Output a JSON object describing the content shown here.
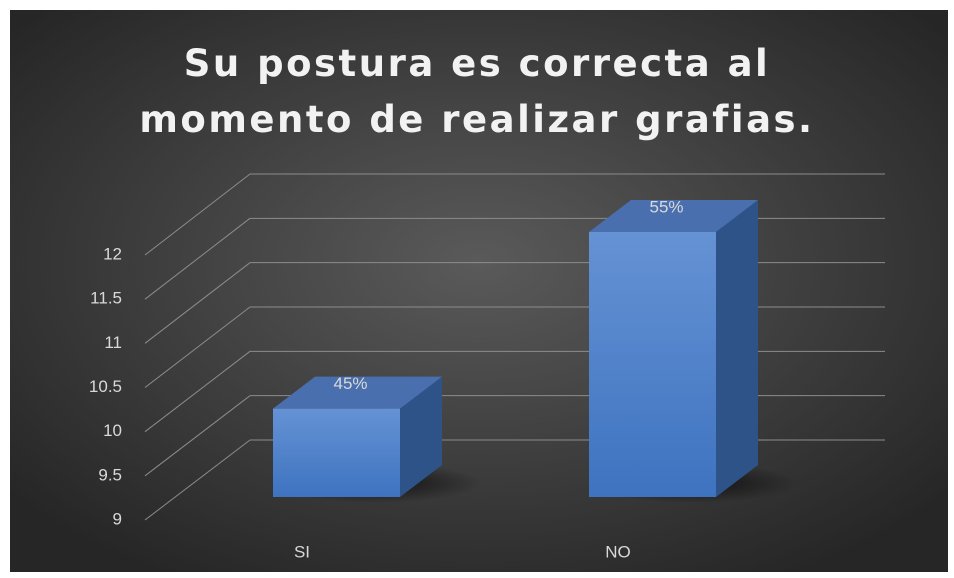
{
  "chart_data": {
    "type": "bar3d",
    "title": "Su postura es correcta al momento de realizar grafias.",
    "categories": [
      "SI",
      "NO"
    ],
    "values": [
      10,
      12
    ],
    "value_labels": [
      "45%",
      "55%"
    ],
    "color": "#4a7fcc",
    "ylim": [
      9,
      12
    ],
    "yticks": [
      9,
      9.5,
      10,
      10.5,
      11,
      11.5,
      12
    ],
    "grid": true
  }
}
